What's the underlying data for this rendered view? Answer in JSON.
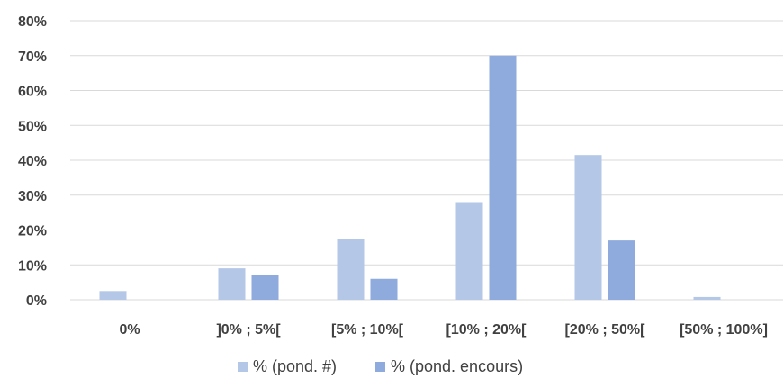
{
  "chart_data": {
    "type": "bar",
    "categories": [
      "0%",
      "]0% ; 5%[",
      "[5% ; 10%[",
      "[10% ; 20%[",
      "[20% ; 50%[",
      "[50% ; 100%]"
    ],
    "series": [
      {
        "name": "% (pond. #)",
        "color": "#b4c7e7",
        "values": [
          2.5,
          9,
          17.5,
          28,
          41.5,
          0.8
        ]
      },
      {
        "name": "% (pond. encours)",
        "color": "#8faadc",
        "values": [
          0,
          7,
          6,
          70,
          17,
          0
        ]
      }
    ],
    "y_ticks": [
      "0%",
      "10%",
      "20%",
      "30%",
      "40%",
      "50%",
      "60%",
      "70%",
      "80%"
    ],
    "ylim": [
      0,
      80
    ],
    "grid": true,
    "legend_position": "bottom"
  }
}
